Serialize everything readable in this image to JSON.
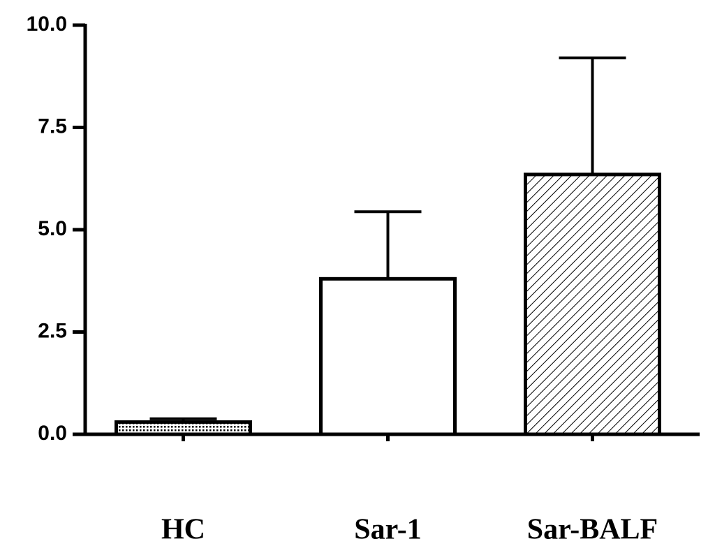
{
  "chart_data": {
    "type": "bar",
    "categories": [
      "HC",
      "Sar-1",
      "Sar-BALF"
    ],
    "values": [
      0.3,
      3.8,
      6.35
    ],
    "errors": [
      0.08,
      1.64,
      2.85
    ],
    "fill_styles": [
      "dots",
      "none",
      "hatch"
    ],
    "color": "#000000",
    "ylim": [
      0,
      10
    ],
    "yticks": [
      {
        "value": 0,
        "label": "0.0"
      },
      {
        "value": 2.5,
        "label": "2.5"
      },
      {
        "value": 5,
        "label": "5.0"
      },
      {
        "value": 7.5,
        "label": "7.5"
      },
      {
        "value": 10,
        "label": "10.0"
      }
    ]
  }
}
